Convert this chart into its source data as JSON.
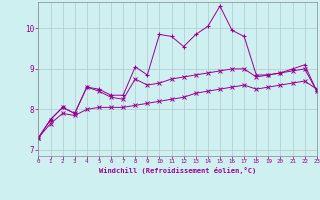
{
  "xlabel": "Windchill (Refroidissement éolien,°C)",
  "bg_color": "#cff0f0",
  "grid_color": "#b0c8c8",
  "line_color": "#990099",
  "x_ticks": [
    0,
    1,
    2,
    3,
    4,
    5,
    6,
    7,
    8,
    9,
    10,
    11,
    12,
    13,
    14,
    15,
    16,
    17,
    18,
    19,
    20,
    21,
    22,
    23
  ],
  "y_ticks": [
    7,
    8,
    9,
    10
  ],
  "xlim": [
    0,
    23
  ],
  "ylim": [
    6.85,
    10.65
  ],
  "series1_x": [
    0,
    1,
    2,
    3,
    4,
    5,
    6,
    7,
    8,
    9,
    10,
    11,
    12,
    13,
    14,
    15,
    16,
    17,
    18,
    19,
    20,
    21,
    22,
    23
  ],
  "series1_y": [
    7.3,
    7.75,
    8.05,
    7.9,
    8.55,
    8.5,
    8.35,
    8.35,
    9.05,
    8.85,
    9.85,
    9.8,
    9.55,
    9.85,
    10.05,
    10.55,
    9.95,
    9.8,
    8.85,
    8.85,
    8.9,
    9.0,
    9.1,
    8.45
  ],
  "series2_x": [
    0,
    1,
    2,
    3,
    4,
    5,
    6,
    7,
    8,
    9,
    10,
    11,
    12,
    13,
    14,
    15,
    16,
    17,
    18,
    19,
    20,
    21,
    22,
    23
  ],
  "series2_y": [
    7.3,
    7.75,
    8.05,
    7.9,
    8.55,
    8.45,
    8.3,
    8.25,
    8.75,
    8.6,
    8.65,
    8.75,
    8.8,
    8.85,
    8.9,
    8.95,
    9.0,
    9.0,
    8.8,
    8.85,
    8.9,
    8.95,
    9.0,
    8.45
  ],
  "series3_x": [
    0,
    1,
    2,
    3,
    4,
    5,
    6,
    7,
    8,
    9,
    10,
    11,
    12,
    13,
    14,
    15,
    16,
    17,
    18,
    19,
    20,
    21,
    22,
    23
  ],
  "series3_y": [
    7.3,
    7.65,
    7.9,
    7.85,
    8.0,
    8.05,
    8.05,
    8.05,
    8.1,
    8.15,
    8.2,
    8.25,
    8.3,
    8.4,
    8.45,
    8.5,
    8.55,
    8.6,
    8.5,
    8.55,
    8.6,
    8.65,
    8.7,
    8.5
  ]
}
